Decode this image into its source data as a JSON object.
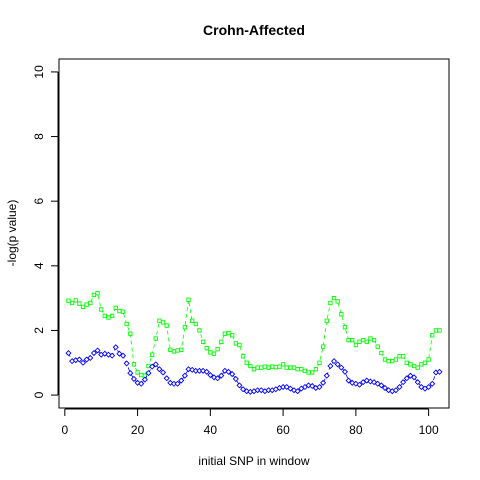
{
  "chart_data": {
    "type": "line",
    "title": "Crohn-Affected",
    "xlabel": "initial SNP in window",
    "ylabel": "-log(p value)",
    "xlim": [
      -1.6,
      105.6
    ],
    "ylim": [
      -0.4,
      10.4
    ],
    "xticks": [
      0,
      20,
      40,
      60,
      80,
      100
    ],
    "yticks": [
      0,
      2,
      4,
      6,
      8,
      10
    ],
    "grid": false,
    "series": [
      {
        "color": "#00ff00",
        "marker": "square",
        "line": "dashed",
        "x": [
          1,
          2,
          3,
          4,
          5,
          6,
          7,
          8,
          9,
          10,
          11,
          12,
          13,
          14,
          15,
          16,
          17,
          18,
          19,
          20,
          21,
          22,
          23,
          24,
          25,
          26,
          27,
          28,
          29,
          30,
          31,
          32,
          33,
          34,
          35,
          36,
          37,
          38,
          39,
          40,
          41,
          42,
          43,
          44,
          45,
          46,
          47,
          48,
          49,
          50,
          51,
          52,
          53,
          54,
          55,
          56,
          57,
          58,
          59,
          60,
          61,
          62,
          63,
          64,
          65,
          66,
          67,
          68,
          69,
          70,
          71,
          72,
          73,
          74,
          75,
          76,
          77,
          78,
          79,
          80,
          81,
          82,
          83,
          84,
          85,
          86,
          87,
          88,
          89,
          90,
          91,
          92,
          93,
          94,
          95,
          96,
          97,
          98,
          99,
          100,
          101,
          102,
          103
        ],
        "values": [
          2.92,
          2.85,
          2.93,
          2.83,
          2.73,
          2.8,
          2.85,
          3.1,
          3.15,
          2.65,
          2.45,
          2.4,
          2.45,
          2.7,
          2.6,
          2.58,
          2.2,
          1.9,
          0.95,
          0.7,
          0.62,
          0.6,
          0.9,
          1.25,
          1.75,
          2.3,
          2.25,
          2.15,
          1.4,
          1.35,
          1.38,
          1.4,
          2.1,
          2.95,
          2.3,
          2.2,
          2.0,
          1.65,
          1.45,
          1.32,
          1.28,
          1.42,
          1.65,
          1.9,
          1.92,
          1.85,
          1.6,
          1.55,
          1.2,
          1.0,
          0.9,
          0.8,
          0.85,
          0.85,
          0.88,
          0.85,
          0.88,
          0.86,
          0.88,
          0.95,
          0.85,
          0.85,
          0.85,
          0.8,
          0.8,
          0.75,
          0.7,
          0.7,
          0.8,
          1.0,
          1.5,
          2.3,
          2.85,
          3.0,
          2.9,
          2.5,
          2.1,
          1.7,
          1.7,
          1.55,
          1.65,
          1.7,
          1.65,
          1.75,
          1.7,
          1.5,
          1.3,
          1.1,
          1.05,
          1.05,
          1.1,
          1.2,
          1.2,
          1.0,
          0.95,
          0.9,
          0.85,
          0.95,
          1.0,
          1.1,
          1.85,
          2.0,
          2.0
        ]
      },
      {
        "color": "#0000ff",
        "marker": "diamond",
        "line": "dashed",
        "x": [
          1,
          2,
          3,
          4,
          5,
          6,
          7,
          8,
          9,
          10,
          11,
          12,
          13,
          14,
          15,
          16,
          17,
          18,
          19,
          20,
          21,
          22,
          23,
          24,
          25,
          26,
          27,
          28,
          29,
          30,
          31,
          32,
          33,
          34,
          35,
          36,
          37,
          38,
          39,
          40,
          41,
          42,
          43,
          44,
          45,
          46,
          47,
          48,
          49,
          50,
          51,
          52,
          53,
          54,
          55,
          56,
          57,
          58,
          59,
          60,
          61,
          62,
          63,
          64,
          65,
          66,
          67,
          68,
          69,
          70,
          71,
          72,
          73,
          74,
          75,
          76,
          77,
          78,
          79,
          80,
          81,
          82,
          83,
          84,
          85,
          86,
          87,
          88,
          89,
          90,
          91,
          92,
          93,
          94,
          95,
          96,
          97,
          98,
          99,
          100,
          101,
          102,
          103
        ],
        "values": [
          1.3,
          1.05,
          1.08,
          1.1,
          1.0,
          1.1,
          1.15,
          1.3,
          1.38,
          1.25,
          1.28,
          1.25,
          1.22,
          1.48,
          1.28,
          1.22,
          0.98,
          0.68,
          0.5,
          0.38,
          0.35,
          0.48,
          0.68,
          0.88,
          0.95,
          0.8,
          0.7,
          0.52,
          0.38,
          0.35,
          0.35,
          0.45,
          0.6,
          0.8,
          0.78,
          0.75,
          0.75,
          0.75,
          0.72,
          0.62,
          0.55,
          0.52,
          0.6,
          0.75,
          0.72,
          0.65,
          0.5,
          0.3,
          0.18,
          0.12,
          0.1,
          0.12,
          0.15,
          0.15,
          0.12,
          0.15,
          0.15,
          0.18,
          0.22,
          0.25,
          0.25,
          0.2,
          0.15,
          0.12,
          0.2,
          0.25,
          0.3,
          0.28,
          0.22,
          0.25,
          0.38,
          0.6,
          0.9,
          1.05,
          0.95,
          0.85,
          0.72,
          0.45,
          0.38,
          0.35,
          0.32,
          0.4,
          0.45,
          0.42,
          0.4,
          0.35,
          0.3,
          0.22,
          0.15,
          0.12,
          0.15,
          0.25,
          0.4,
          0.52,
          0.6,
          0.55,
          0.4,
          0.25,
          0.2,
          0.25,
          0.35,
          0.7,
          0.72
        ]
      }
    ]
  }
}
